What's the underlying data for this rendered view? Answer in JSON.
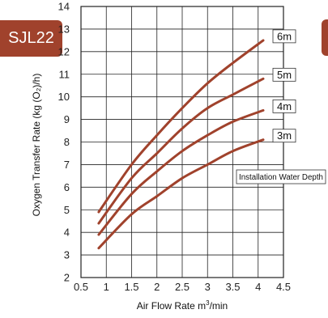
{
  "badge": {
    "text": "SJL22"
  },
  "colors": {
    "curve": "#a0422c",
    "badge": "#a0422c",
    "grid": "#222222"
  },
  "chart_data": {
    "type": "line",
    "title": "",
    "xlabel": "Air Flow Rate m",
    "xlabel_sup": "3",
    "xlabel_suffix": "/min",
    "ylabel": "Oxygen Transfer Rate (kg (O₂)/h)",
    "xlim": [
      0.5,
      4.5
    ],
    "ylim": [
      2,
      14
    ],
    "x_ticks": [
      "0.5",
      "1",
      "1.5",
      "2",
      "2.5",
      "3",
      "3.5",
      "4",
      "4.5"
    ],
    "y_ticks": [
      "2",
      "3",
      "4",
      "5",
      "6",
      "7",
      "8",
      "9",
      "10",
      "11",
      "12",
      "13",
      "14"
    ],
    "grid": true,
    "series": [
      {
        "name": "6m",
        "x": [
          0.85,
          1.5,
          2.0,
          2.5,
          3.0,
          3.5,
          4.1
        ],
        "y": [
          4.9,
          7.0,
          8.3,
          9.5,
          10.6,
          11.5,
          12.5
        ]
      },
      {
        "name": "5m",
        "x": [
          0.85,
          1.5,
          2.0,
          2.5,
          3.0,
          3.5,
          4.1
        ],
        "y": [
          4.4,
          6.4,
          7.5,
          8.6,
          9.5,
          10.1,
          10.8
        ]
      },
      {
        "name": "4m",
        "x": [
          0.85,
          1.5,
          2.0,
          2.5,
          3.0,
          3.5,
          4.1
        ],
        "y": [
          3.9,
          5.7,
          6.7,
          7.6,
          8.3,
          8.9,
          9.4
        ]
      },
      {
        "name": "3m",
        "x": [
          0.85,
          1.5,
          2.0,
          2.5,
          3.0,
          3.5,
          4.1
        ],
        "y": [
          3.3,
          4.8,
          5.6,
          6.4,
          7.0,
          7.6,
          8.1
        ]
      }
    ],
    "annotations": [
      "Installation Water Depth"
    ]
  }
}
